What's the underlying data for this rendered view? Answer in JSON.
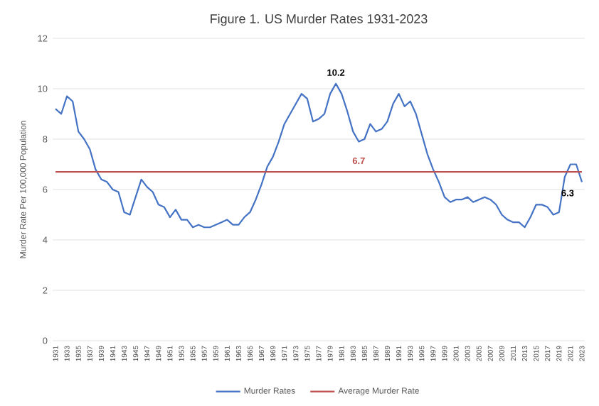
{
  "chart_data": {
    "type": "line",
    "title": "Figure 1. US Murder Rates 1931-2023",
    "ylabel": "Murder Rate Per 100,000 Population",
    "categories": [
      "1931",
      null,
      "1933",
      null,
      "1935",
      null,
      "1937",
      null,
      "1939",
      null,
      "1941",
      null,
      "1943",
      null,
      "1945",
      null,
      "1947",
      null,
      "1949",
      null,
      "1951",
      null,
      "1953",
      null,
      "1955",
      null,
      "1957",
      null,
      "1959",
      null,
      "1961",
      null,
      "1963",
      null,
      "1965",
      null,
      "1967",
      null,
      "1969",
      null,
      "1971",
      null,
      "1973",
      null,
      "1975",
      null,
      "1977",
      null,
      "1979",
      null,
      "1981",
      null,
      "1983",
      null,
      "1985",
      null,
      "1987",
      null,
      "1989",
      null,
      "1991",
      null,
      "1993",
      null,
      "1995",
      null,
      "1997",
      null,
      "1999",
      null,
      "2001",
      null,
      "2003",
      null,
      "2005",
      null,
      "2007",
      null,
      "2009",
      null,
      "2011",
      null,
      "2013",
      null,
      "2015",
      null,
      "2017",
      null,
      "2019",
      null,
      "2021",
      null,
      "2023"
    ],
    "series": [
      {
        "name": "Murder Rates",
        "color": "#4472c4",
        "values": [
          9.2,
          9.0,
          9.7,
          9.5,
          8.3,
          8.0,
          7.6,
          6.8,
          6.4,
          6.3,
          6.0,
          5.9,
          5.1,
          5.0,
          5.7,
          6.4,
          6.1,
          5.9,
          5.4,
          5.3,
          4.9,
          5.2,
          4.8,
          4.8,
          4.5,
          4.6,
          4.5,
          4.5,
          4.6,
          4.7,
          4.8,
          4.6,
          4.6,
          4.9,
          5.1,
          5.6,
          6.2,
          6.9,
          7.3,
          7.9,
          8.6,
          9.0,
          9.4,
          9.8,
          9.6,
          8.7,
          8.8,
          9.0,
          9.8,
          10.2,
          9.8,
          9.1,
          8.3,
          7.9,
          8.0,
          8.6,
          8.3,
          8.4,
          8.7,
          9.4,
          9.8,
          9.3,
          9.5,
          9.0,
          8.2,
          7.4,
          6.8,
          6.3,
          5.7,
          5.5,
          5.6,
          5.6,
          5.7,
          5.5,
          5.6,
          5.7,
          5.6,
          5.4,
          5.0,
          4.8,
          4.7,
          4.7,
          4.5,
          4.9,
          5.4,
          5.4,
          5.3,
          5.0,
          5.1,
          6.5,
          7.0,
          7.0,
          6.3
        ],
        "value_labels": [
          null,
          null,
          null,
          null,
          null,
          null,
          null,
          null,
          null,
          null,
          null,
          null,
          null,
          null,
          null,
          null,
          null,
          null,
          null,
          null,
          null,
          null,
          null,
          null,
          null,
          null,
          null,
          null,
          null,
          null,
          null,
          null,
          null,
          null,
          null,
          null,
          null,
          null,
          null,
          null,
          null,
          null,
          null,
          null,
          null,
          null,
          null,
          null,
          null,
          "10.2",
          null,
          null,
          null,
          null,
          null,
          null,
          null,
          null,
          null,
          null,
          null,
          null,
          null,
          null,
          null,
          null,
          null,
          null,
          null,
          null,
          null,
          null,
          null,
          null,
          null,
          null,
          null,
          null,
          null,
          null,
          null,
          null,
          null,
          null,
          null,
          null,
          null,
          null,
          null,
          null,
          null,
          null,
          "6.3"
        ]
      },
      {
        "name": "Average Murder Rate",
        "color": "#c0504d",
        "values": [
          6.7,
          6.7,
          6.7,
          6.7,
          6.7,
          6.7,
          6.7,
          6.7,
          6.7,
          6.7,
          6.7,
          6.7,
          6.7,
          6.7,
          6.7,
          6.7,
          6.7,
          6.7,
          6.7,
          6.7,
          6.7,
          6.7,
          6.7,
          6.7,
          6.7,
          6.7,
          6.7,
          6.7,
          6.7,
          6.7,
          6.7,
          6.7,
          6.7,
          6.7,
          6.7,
          6.7,
          6.7,
          6.7,
          6.7,
          6.7,
          6.7,
          6.7,
          6.7,
          6.7,
          6.7,
          6.7,
          6.7,
          6.7,
          6.7,
          6.7,
          6.7,
          6.7,
          6.7,
          6.7,
          6.7,
          6.7,
          6.7,
          6.7,
          6.7,
          6.7,
          6.7,
          6.7,
          6.7,
          6.7,
          6.7,
          6.7,
          6.7,
          6.7,
          6.7,
          6.7,
          6.7,
          6.7,
          6.7,
          6.7,
          6.7,
          6.7,
          6.7,
          6.7,
          6.7,
          6.7,
          6.7,
          6.7,
          6.7,
          6.7,
          6.7,
          6.7,
          6.7,
          6.7,
          6.7,
          6.7,
          6.7,
          6.7,
          6.7
        ],
        "value_labels": [
          null,
          null,
          null,
          null,
          null,
          null,
          null,
          null,
          null,
          null,
          null,
          null,
          null,
          null,
          null,
          null,
          null,
          null,
          null,
          null,
          null,
          null,
          null,
          null,
          null,
          null,
          null,
          null,
          null,
          null,
          null,
          null,
          null,
          null,
          null,
          null,
          null,
          null,
          null,
          null,
          null,
          null,
          null,
          null,
          null,
          null,
          null,
          null,
          null,
          null,
          null,
          null,
          null,
          "6.7",
          null,
          null,
          null,
          null,
          null,
          null,
          null,
          null,
          null,
          null,
          null,
          null,
          null,
          null,
          null,
          null,
          null,
          null,
          null,
          null,
          null,
          null,
          null,
          null,
          null,
          null,
          null,
          null,
          null,
          null,
          null,
          null,
          null,
          null,
          null,
          null,
          null,
          null,
          null
        ]
      }
    ],
    "ylim": [
      0,
      12
    ],
    "yticks": [
      0,
      2,
      4,
      6,
      8,
      10,
      12
    ],
    "grid": "y",
    "legend": "bottom",
    "marker": "none",
    "line_style": "solid"
  }
}
